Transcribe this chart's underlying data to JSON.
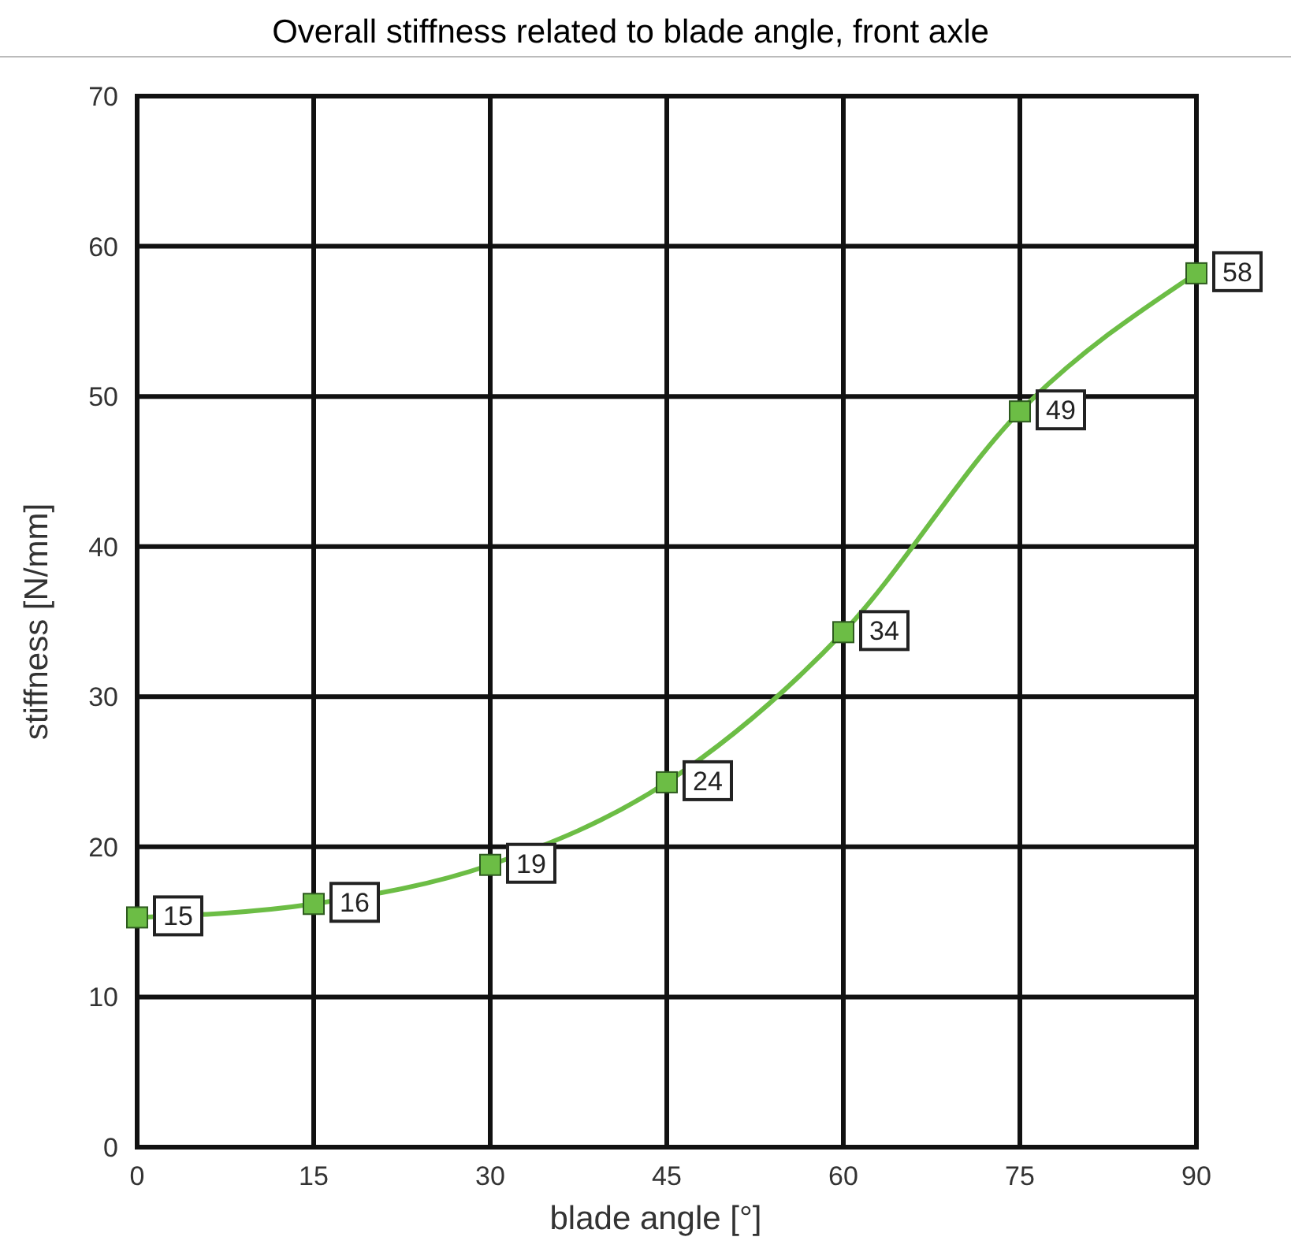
{
  "chart_data": {
    "type": "line",
    "title": "Overall stiffness related to blade angle, front axle",
    "xlabel": "blade angle [°]",
    "ylabel": "stiffness [N/mm]",
    "x": [
      0,
      15,
      30,
      45,
      60,
      75,
      90
    ],
    "series": [
      {
        "color": "#6cbd45",
        "values": [
          15.3,
          16.2,
          18.8,
          24.3,
          34.3,
          49,
          58.2
        ],
        "value_labels": [
          "15",
          "16",
          "19",
          "24",
          "34",
          "49",
          "58"
        ]
      }
    ],
    "xlim": [
      0,
      90
    ],
    "xticks": [
      0,
      15,
      30,
      45,
      60,
      75,
      90
    ],
    "ylim": [
      0,
      70
    ],
    "yticks": [
      0,
      10,
      20,
      30,
      40,
      50,
      60,
      70
    ],
    "grid": true,
    "marker": "square",
    "line_style": "solid"
  }
}
